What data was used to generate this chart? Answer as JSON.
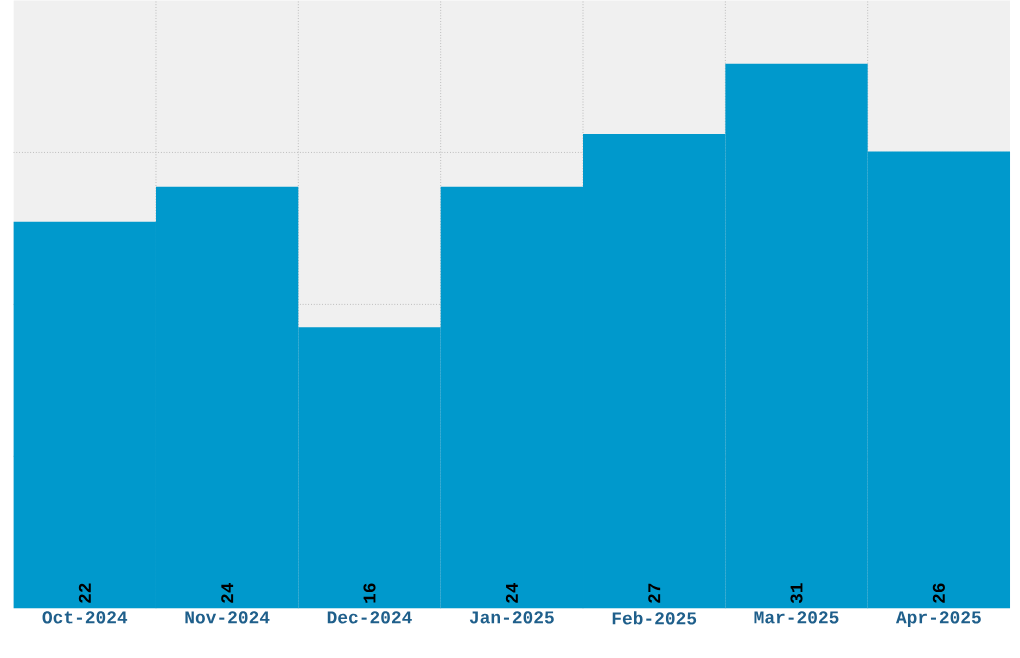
{
  "chart_data": {
    "type": "bar",
    "categories": [
      "Oct-2024",
      "Nov-2024",
      "Dec-2024",
      "Jan-2025",
      "Feb-2025",
      "Mar-2025",
      "Apr-2025"
    ],
    "values": [
      22,
      24,
      16,
      24,
      27,
      31,
      26
    ],
    "color": "#0099cc",
    "ylim": [
      0,
      34.6
    ],
    "yticks": [
      {
        "value": 8.65,
        "label": null
      },
      {
        "value": 17.3,
        "label": null
      },
      {
        "value": 25.95,
        "label": null
      }
    ],
    "tick_labels": "x",
    "grid": true,
    "data_labels": true
  }
}
